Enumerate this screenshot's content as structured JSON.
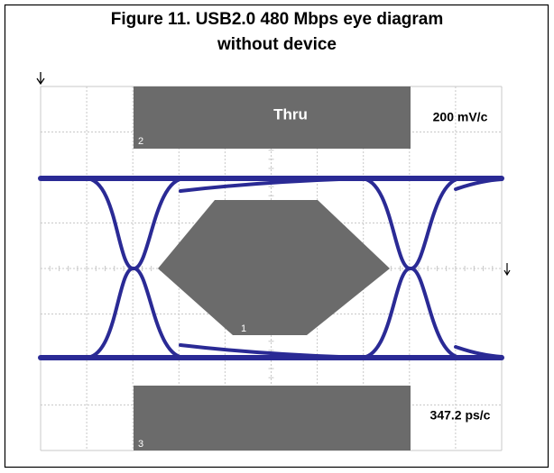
{
  "figure": {
    "title_line1": "Figure 11. USB2.0 480 Mbps eye diagram",
    "title_line2": "without device"
  },
  "scope": {
    "mask_top_label": "Thru",
    "vertical_scale": "200 mV/c",
    "horizontal_scale": "347.2 ps/c",
    "mask_numbers": [
      "1",
      "2",
      "3"
    ]
  }
}
